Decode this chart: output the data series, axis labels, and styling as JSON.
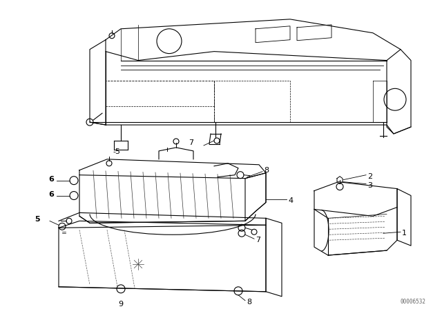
{
  "bg_color": "#ffffff",
  "line_color": "#000000",
  "fig_width": 6.4,
  "fig_height": 4.48,
  "dpi": 100,
  "watermark_text": "00006532",
  "watermark_fontsize": 5.5,
  "watermark_color": "#666666",
  "label_fontsize": 8,
  "label_color": "#000000"
}
